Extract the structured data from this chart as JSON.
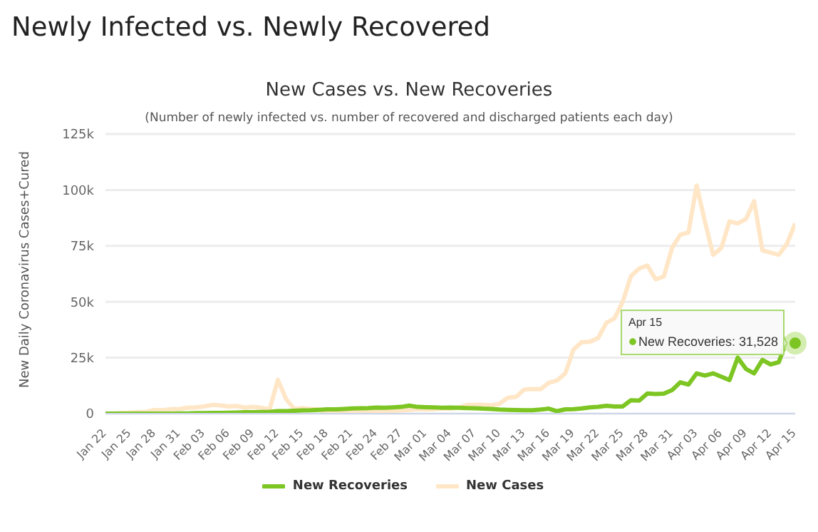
{
  "chart_data": {
    "type": "line",
    "title": "Newly Infected vs. Newly Recovered",
    "subtitle": "New Cases vs. New Recoveries",
    "ylabel": "New Daily Coronavirus Cases+Cured",
    "annotations": [
      "(Number of newly infected vs. number of recovered and discharged patients each day)",
      {
        "text": "New Recoveries: 31,528",
        "x": "Apr 15",
        "y": 31528
      }
    ],
    "categories": [
      "Jan 22",
      null,
      null,
      "Jan 25",
      null,
      null,
      "Jan 28",
      null,
      null,
      "Jan 31",
      null,
      null,
      "Feb 03",
      null,
      null,
      "Feb 06",
      null,
      null,
      "Feb 09",
      null,
      null,
      "Feb 12",
      null,
      null,
      "Feb 15",
      null,
      null,
      "Feb 18",
      null,
      null,
      "Feb 21",
      null,
      null,
      "Feb 24",
      null,
      null,
      "Feb 27",
      null,
      null,
      "Mar 01",
      null,
      null,
      "Mar 04",
      null,
      null,
      "Mar 07",
      null,
      null,
      "Mar 10",
      null,
      null,
      "Mar 13",
      null,
      null,
      "Mar 16",
      null,
      null,
      "Mar 19",
      null,
      null,
      "Mar 22",
      null,
      null,
      "Mar 25",
      null,
      null,
      "Mar 28",
      null,
      null,
      "Mar 31",
      null,
      null,
      "Apr 03",
      null,
      null,
      "Apr 06",
      null,
      null,
      "Apr 09",
      null,
      null,
      "Apr 12",
      null,
      null,
      "Apr 15"
    ],
    "series": [
      {
        "name": "New Recoveries",
        "color": "#7cc522",
        "values": [
          0,
          0,
          0,
          0,
          0,
          0,
          0,
          0,
          0,
          100,
          100,
          200,
          200,
          300,
          300,
          400,
          500,
          600,
          600,
          700,
          800,
          1100,
          1100,
          1300,
          1400,
          1500,
          1700,
          1900,
          1900,
          2100,
          2300,
          2400,
          2500,
          2700,
          2600,
          2800,
          3000,
          3600,
          3000,
          2900,
          2800,
          2600,
          2700,
          2600,
          2500,
          2400,
          2200,
          2100,
          1800,
          1700,
          1600,
          1500,
          1500,
          1800,
          2200,
          1100,
          1900,
          2000,
          2300,
          2800,
          3000,
          3500,
          3200,
          3200,
          6000,
          5800,
          9000,
          8800,
          8900,
          10500,
          14000,
          13000,
          18000,
          17000,
          18000,
          16500,
          15000,
          25000,
          20000,
          18000,
          24000,
          22000,
          23000,
          33000,
          31528
        ]
      },
      {
        "name": "New Cases",
        "color": "#ffe6c6",
        "values": [
          100,
          100,
          300,
          500,
          700,
          800,
          1700,
          1500,
          2000,
          2100,
          2600,
          2800,
          3200,
          3900,
          3700,
          3200,
          3400,
          2700,
          3000,
          2600,
          2000,
          15100,
          6500,
          2100,
          2500,
          2100,
          1900,
          500,
          600,
          1000,
          1400,
          600,
          600,
          900,
          900,
          1200,
          1400,
          1700,
          2000,
          1800,
          1900,
          2400,
          2200,
          2700,
          3900,
          3900,
          4000,
          3700,
          4400,
          7100,
          7500,
          10800,
          11000,
          10900,
          13800,
          14800,
          18000,
          28600,
          32000,
          32100,
          33800,
          40600,
          42600,
          50100,
          61500,
          64900,
          66200,
          60100,
          61300,
          74000,
          80000,
          81000,
          102000,
          86000,
          71000,
          74000,
          86000,
          85000,
          87000,
          95000,
          73000,
          72000,
          71000,
          76000,
          85000
        ]
      }
    ],
    "ylim": [
      0,
      125000
    ],
    "yticks": [
      0,
      {
        "value": 25000,
        "label": "25k"
      },
      {
        "value": 50000,
        "label": "50k"
      },
      {
        "value": 75000,
        "label": "75k"
      },
      {
        "value": 100000,
        "label": "100k"
      },
      {
        "value": 125000,
        "label": "125k"
      }
    ],
    "grid": "y",
    "legend": "bottom",
    "marker": "none",
    "line_style": "solid"
  }
}
